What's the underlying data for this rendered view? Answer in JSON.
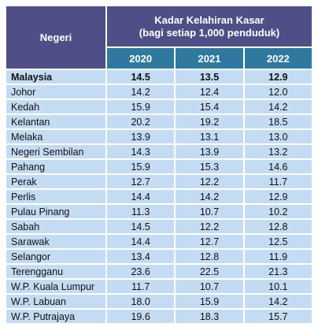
{
  "header": {
    "state_col": "Negeri",
    "title_line1": "Kadar Kelahiran Kasar",
    "title_line2": "(bagi setiap 1,000 penduduk)",
    "years": [
      "2020",
      "2021",
      "2022"
    ]
  },
  "rows": [
    {
      "name": "Malaysia",
      "v2020": "14.5",
      "v2021": "13.5",
      "v2022": "12.9"
    },
    {
      "name": "Johor",
      "v2020": "14.2",
      "v2021": "12.4",
      "v2022": "12.0"
    },
    {
      "name": "Kedah",
      "v2020": "15.9",
      "v2021": "15.4",
      "v2022": "14.2"
    },
    {
      "name": "Kelantan",
      "v2020": "20.2",
      "v2021": "19.2",
      "v2022": "18.5"
    },
    {
      "name": "Melaka",
      "v2020": "13.9",
      "v2021": "13.1",
      "v2022": "13.0"
    },
    {
      "name": "Negeri Sembilan",
      "v2020": "14.3",
      "v2021": "13.9",
      "v2022": "13.2"
    },
    {
      "name": "Pahang",
      "v2020": "15.9",
      "v2021": "15.3",
      "v2022": "14.6"
    },
    {
      "name": "Perak",
      "v2020": "12.7",
      "v2021": "12.2",
      "v2022": "11.7"
    },
    {
      "name": "Perlis",
      "v2020": "14.4",
      "v2021": "14.2",
      "v2022": "12.9"
    },
    {
      "name": "Pulau Pinang",
      "v2020": "11.3",
      "v2021": "10.7",
      "v2022": "10.2"
    },
    {
      "name": "Sabah",
      "v2020": "14.5",
      "v2021": "12.2",
      "v2022": "12.8"
    },
    {
      "name": "Sarawak",
      "v2020": "14.4",
      "v2021": "12.7",
      "v2022": "12.5"
    },
    {
      "name": "Selangor",
      "v2020": "13.4",
      "v2021": "12.8",
      "v2022": "11.9"
    },
    {
      "name": "Terengganu",
      "v2020": "23.6",
      "v2021": "22.5",
      "v2022": "21.3"
    },
    {
      "name": "W.P. Kuala Lumpur",
      "v2020": "11.7",
      "v2021": "10.7",
      "v2022": "10.1"
    },
    {
      "name": "W.P. Labuan",
      "v2020": "18.0",
      "v2021": "15.9",
      "v2022": "14.2"
    },
    {
      "name": "W.P. Putrajaya",
      "v2020": "19.6",
      "v2021": "18.3",
      "v2022": "15.7"
    }
  ]
}
